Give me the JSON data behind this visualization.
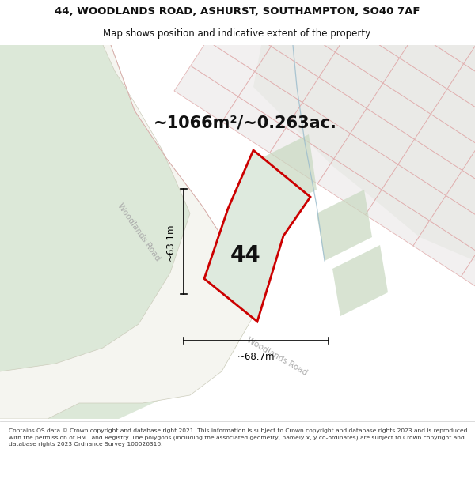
{
  "title_line1": "44, WOODLANDS ROAD, ASHURST, SOUTHAMPTON, SO40 7AF",
  "title_line2": "Map shows position and indicative extent of the property.",
  "area_text": "~1066m²/~0.263ac.",
  "label_44": "44",
  "dim_vertical": "~63.1m",
  "dim_horizontal": "~68.7m",
  "road_label1": "Woodlands Road",
  "road_label2": "Woodlands Road",
  "footer_text": "Contains OS data © Crown copyright and database right 2021. This information is subject to Crown copyright and database rights 2023 and is reproduced with the permission of HM Land Registry. The polygons (including the associated geometry, namely x, y co-ordinates) are subject to Crown copyright and database rights 2023 Ordnance Survey 100026316.",
  "map_bg": "#eaeee8",
  "white_bg": "#ffffff",
  "road_fill": "#e8e8e0",
  "plot_fill": "#dce8dc",
  "plot_outline": "#cc0000",
  "dim_line_color": "#111111",
  "neighbor_fill": "#f0ecec",
  "neighbor_outline": "#e0a0a0",
  "green_fill": "#ccd8c8",
  "road_label_color": "#aaaaaa",
  "blue_line_color": "#99bbcc",
  "text_color": "#111111",
  "footer_text_color": "#333333"
}
